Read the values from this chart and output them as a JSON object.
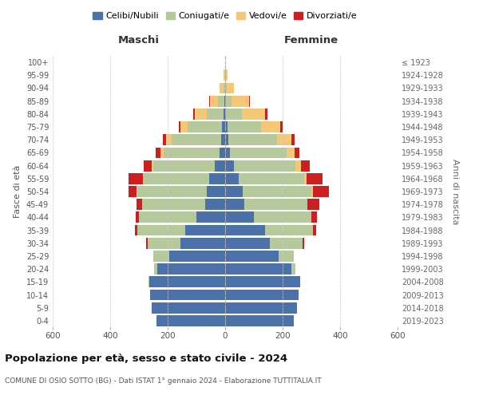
{
  "age_groups": [
    "0-4",
    "5-9",
    "10-14",
    "15-19",
    "20-24",
    "25-29",
    "30-34",
    "35-39",
    "40-44",
    "45-49",
    "50-54",
    "55-59",
    "60-64",
    "65-69",
    "70-74",
    "75-79",
    "80-84",
    "85-89",
    "90-94",
    "95-99",
    "100+"
  ],
  "birth_years": [
    "2019-2023",
    "2014-2018",
    "2009-2013",
    "2004-2008",
    "1999-2003",
    "1994-1998",
    "1989-1993",
    "1984-1988",
    "1979-1983",
    "1974-1978",
    "1969-1973",
    "1964-1968",
    "1959-1963",
    "1954-1958",
    "1949-1953",
    "1944-1948",
    "1939-1943",
    "1934-1938",
    "1929-1933",
    "1924-1928",
    "≤ 1923"
  ],
  "colors": {
    "celibi": "#4a72a8",
    "coniugati": "#b5c99a",
    "vedovi": "#f5c878",
    "divorziati": "#cc2020"
  },
  "male": {
    "celibi": [
      240,
      255,
      260,
      265,
      235,
      195,
      155,
      140,
      100,
      70,
      65,
      55,
      35,
      20,
      15,
      10,
      5,
      2,
      0,
      0,
      0
    ],
    "coniugati": [
      0,
      0,
      0,
      2,
      12,
      55,
      115,
      165,
      200,
      220,
      240,
      230,
      215,
      195,
      170,
      120,
      60,
      22,
      5,
      0,
      0
    ],
    "vedovi": [
      0,
      0,
      0,
      0,
      0,
      0,
      0,
      0,
      0,
      0,
      2,
      2,
      5,
      10,
      20,
      25,
      40,
      30,
      15,
      5,
      0
    ],
    "divorziati": [
      0,
      0,
      0,
      0,
      0,
      0,
      5,
      8,
      12,
      18,
      28,
      48,
      28,
      18,
      12,
      5,
      5,
      2,
      0,
      0,
      0
    ]
  },
  "female": {
    "nubili": [
      240,
      250,
      255,
      260,
      230,
      185,
      155,
      140,
      100,
      68,
      60,
      48,
      30,
      18,
      12,
      8,
      3,
      2,
      0,
      0,
      0
    ],
    "coniugate": [
      0,
      0,
      0,
      2,
      15,
      55,
      115,
      165,
      200,
      218,
      240,
      228,
      215,
      195,
      168,
      118,
      55,
      20,
      5,
      2,
      0
    ],
    "vedove": [
      0,
      0,
      0,
      0,
      0,
      0,
      0,
      0,
      0,
      0,
      5,
      8,
      18,
      30,
      50,
      65,
      80,
      60,
      25,
      5,
      0
    ],
    "divorziate": [
      0,
      0,
      0,
      0,
      0,
      0,
      5,
      12,
      20,
      42,
      55,
      55,
      32,
      16,
      12,
      10,
      10,
      5,
      0,
      0,
      0
    ]
  },
  "title": "Popolazione per età, sesso e stato civile - 2024",
  "subtitle": "COMUNE DI OSIO SOTTO (BG) - Dati ISTAT 1° gennaio 2024 - Elaborazione TUTTITALIA.IT",
  "legend_labels": [
    "Celibi/Nubili",
    "Coniugati/e",
    "Vedovi/e",
    "Divorziati/e"
  ],
  "xlabel_left": "Maschi",
  "xlabel_right": "Femmine",
  "ylabel_left": "Fasce di età",
  "ylabel_right": "Anni di nascita",
  "xlim": 600,
  "background_color": "#ffffff"
}
